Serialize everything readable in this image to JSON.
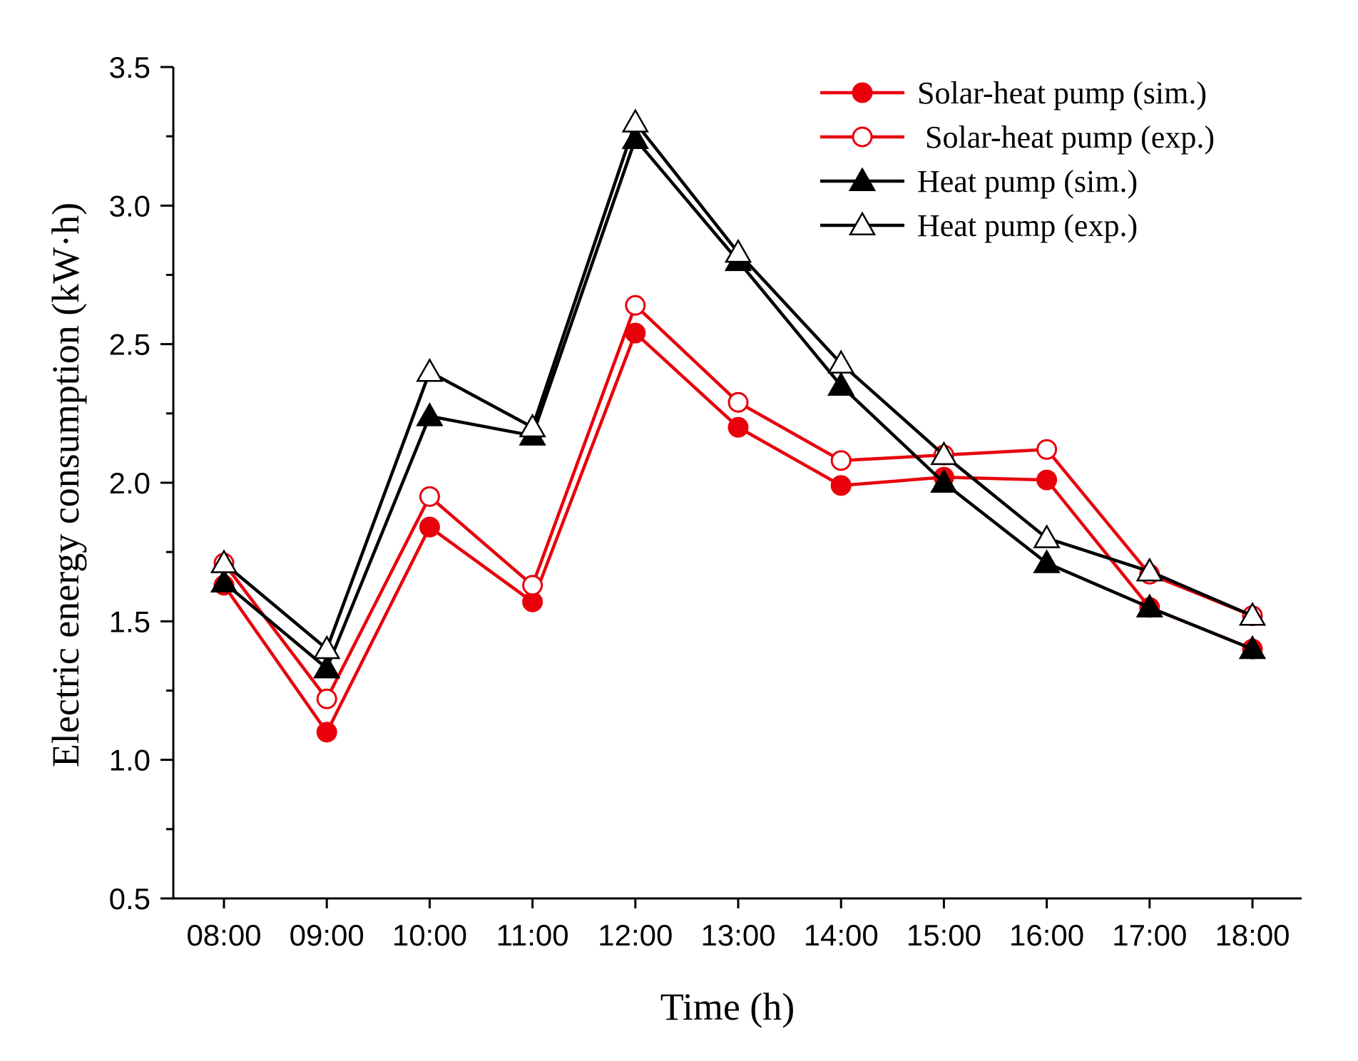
{
  "chart_data": {
    "type": "line",
    "title": "",
    "xlabel": "Time (h)",
    "ylabel": "Electric energy consumption (kW·h)",
    "ylim": [
      0.5,
      3.5
    ],
    "yticks": [
      0.5,
      1.0,
      1.5,
      2.0,
      2.5,
      3.0,
      3.5
    ],
    "ytick_labels": [
      "0.5",
      "1.0",
      "1.5",
      "2.0",
      "2.5",
      "3.0",
      "3.5"
    ],
    "categories": [
      "08:00",
      "09:00",
      "10:00",
      "11:00",
      "12:00",
      "13:00",
      "14:00",
      "15:00",
      "16:00",
      "17:00",
      "18:00"
    ],
    "legend_position": "top-right",
    "series": [
      {
        "name": "Solar-heat pump (sim.)",
        "color": "#e8000b",
        "marker": "circle-filled",
        "values": [
          1.63,
          1.1,
          1.84,
          1.57,
          2.54,
          2.2,
          1.99,
          2.02,
          2.01,
          1.55,
          1.4
        ]
      },
      {
        "name": " Solar-heat pump (exp.)",
        "color": "#e8000b",
        "marker": "circle-open",
        "values": [
          1.71,
          1.22,
          1.95,
          1.63,
          2.64,
          2.29,
          2.08,
          2.1,
          2.12,
          1.67,
          1.52
        ]
      },
      {
        "name": "Heat pump (sim.)",
        "color": "#000000",
        "marker": "triangle-filled",
        "values": [
          1.64,
          1.33,
          2.24,
          2.17,
          3.24,
          2.8,
          2.35,
          2.0,
          1.71,
          1.55,
          1.4
        ]
      },
      {
        "name": "Heat pump (exp.)",
        "color": "#000000",
        "marker": "triangle-open",
        "values": [
          1.71,
          1.4,
          2.4,
          2.2,
          3.3,
          2.83,
          2.43,
          2.1,
          1.8,
          1.68,
          1.52
        ]
      }
    ]
  }
}
